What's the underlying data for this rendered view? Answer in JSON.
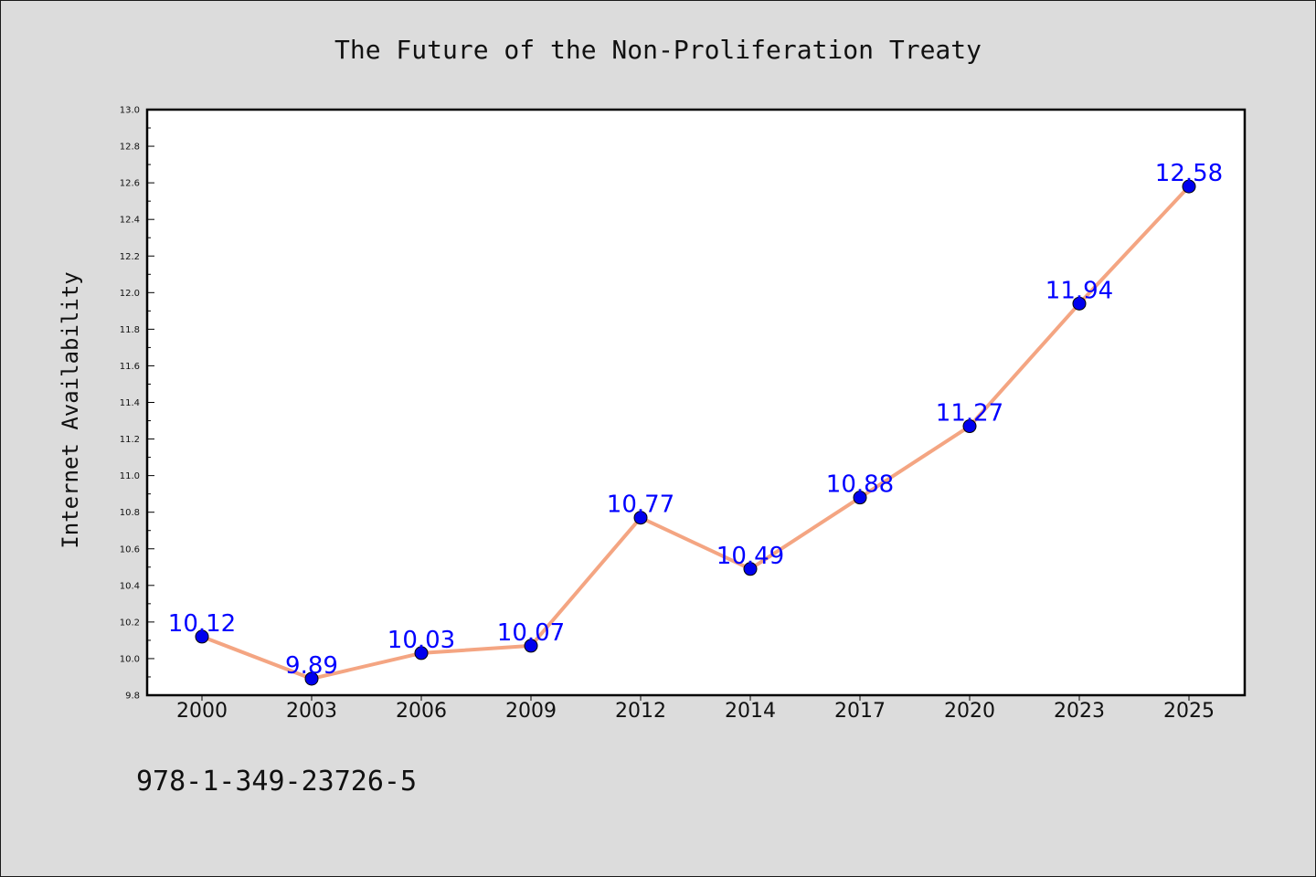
{
  "chart_data": {
    "type": "line",
    "title": "The Future of the Non-Proliferation Treaty",
    "ylabel": "Internet Availability",
    "xlabel": "",
    "categories": [
      "2000",
      "2003",
      "2006",
      "2009",
      "2012",
      "2014",
      "2017",
      "2020",
      "2023",
      "2025"
    ],
    "series": [
      {
        "values": [
          10.12,
          9.89,
          10.03,
          10.07,
          10.77,
          10.49,
          10.88,
          11.27,
          11.94,
          12.58
        ],
        "line_color": "#f4a582",
        "marker_color": "#0000ee"
      }
    ],
    "data_labels": [
      "10.12",
      "9.89",
      "10.03",
      "10.07",
      "10.77",
      "10.49",
      "10.88",
      "11.27",
      "11.94",
      "12.58"
    ],
    "ylim": [
      9.8,
      13.0
    ],
    "yticks": [
      "9.8",
      "10.0",
      "10.2",
      "10.4",
      "10.6",
      "10.8",
      "11.0",
      "11.2",
      "11.4",
      "11.6",
      "11.8",
      "12.0",
      "12.2",
      "12.4",
      "12.6",
      "12.8",
      "13.0"
    ],
    "grid": false,
    "legend": "none",
    "label_color": "#0000ff"
  },
  "footer": {
    "isbn": "978-1-349-23726-5"
  }
}
